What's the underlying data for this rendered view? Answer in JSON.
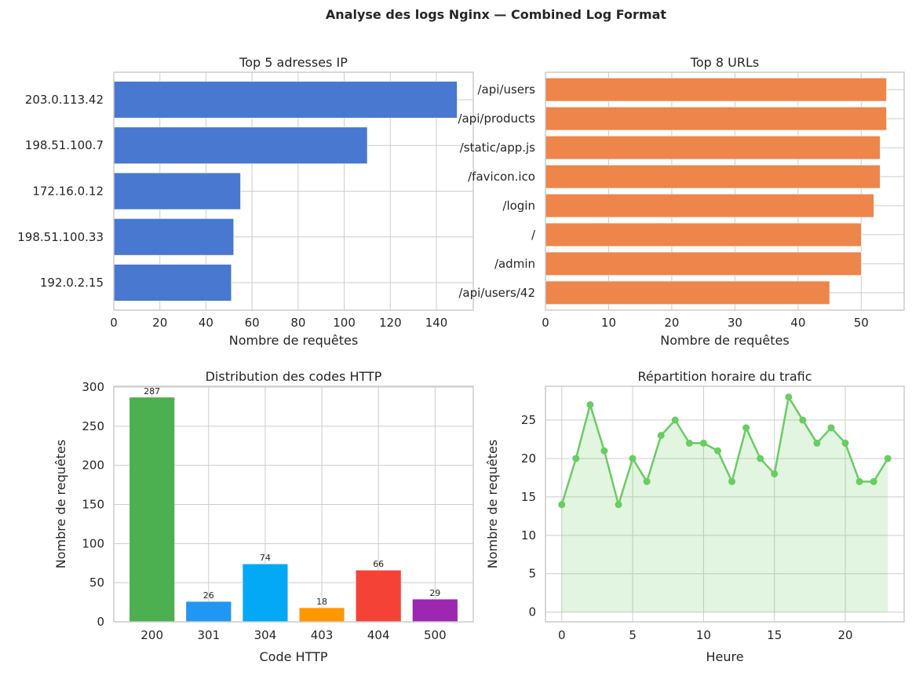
{
  "title": "Analyse des logs Nginx — Combined Log Format",
  "chart_data": [
    {
      "type": "bar",
      "orientation": "horizontal",
      "title": "Top 5 adresses IP",
      "xlabel": "Nombre de requêtes",
      "ylabel": "",
      "categories": [
        "203.0.113.42",
        "198.51.100.7",
        "172.16.0.12",
        "198.51.100.33",
        "192.0.2.15"
      ],
      "values": [
        149,
        110,
        55,
        52,
        51
      ],
      "xlim": [
        0,
        156
      ],
      "xticks": [
        0,
        20,
        40,
        60,
        80,
        100,
        120,
        140
      ],
      "color": "#4878cf",
      "grid": true
    },
    {
      "type": "bar",
      "orientation": "horizontal",
      "title": "Top 8 URLs",
      "xlabel": "Nombre de requêtes",
      "ylabel": "",
      "categories": [
        "/api/users",
        "/api/products",
        "/static/app.js",
        "/favicon.ico",
        "/login",
        "/",
        "/admin",
        "/api/users/42"
      ],
      "values": [
        54,
        54,
        53,
        53,
        52,
        50,
        50,
        45
      ],
      "xlim": [
        0,
        56.8
      ],
      "xticks": [
        0,
        10,
        20,
        30,
        40,
        50
      ],
      "color": "#ee854a",
      "grid": true
    },
    {
      "type": "bar",
      "title": "Distribution des codes HTTP",
      "xlabel": "Code HTTP",
      "ylabel": "Nombre de requêtes",
      "categories": [
        "200",
        "301",
        "304",
        "403",
        "404",
        "500"
      ],
      "values": [
        287,
        26,
        74,
        18,
        66,
        29
      ],
      "colors": [
        "#4caf50",
        "#2196f3",
        "#03a9f4",
        "#ff9800",
        "#f44336",
        "#9c27b0"
      ],
      "ylim": [
        0,
        301
      ],
      "yticks": [
        0,
        50,
        100,
        150,
        200,
        250,
        300
      ],
      "data_labels": true,
      "grid": true
    },
    {
      "type": "area",
      "title": "Répartition horaire du trafic",
      "xlabel": "Heure",
      "ylabel": "Nombre de requêtes",
      "x": [
        0,
        1,
        2,
        3,
        4,
        5,
        6,
        7,
        8,
        9,
        10,
        11,
        12,
        13,
        14,
        15,
        16,
        17,
        18,
        19,
        20,
        21,
        22,
        23
      ],
      "values": [
        14,
        20,
        27,
        21,
        14,
        20,
        17,
        23,
        25,
        22,
        22,
        21,
        17,
        24,
        20,
        18,
        28,
        25,
        22,
        24,
        22,
        17,
        17,
        20
      ],
      "xlim": [
        -1.15,
        24.15
      ],
      "ylim": [
        -1.26,
        29.4
      ],
      "xticks": [
        0,
        5,
        10,
        15,
        20
      ],
      "yticks": [
        0,
        5,
        10,
        15,
        20,
        25
      ],
      "color": "#6acc64",
      "grid": true
    }
  ]
}
